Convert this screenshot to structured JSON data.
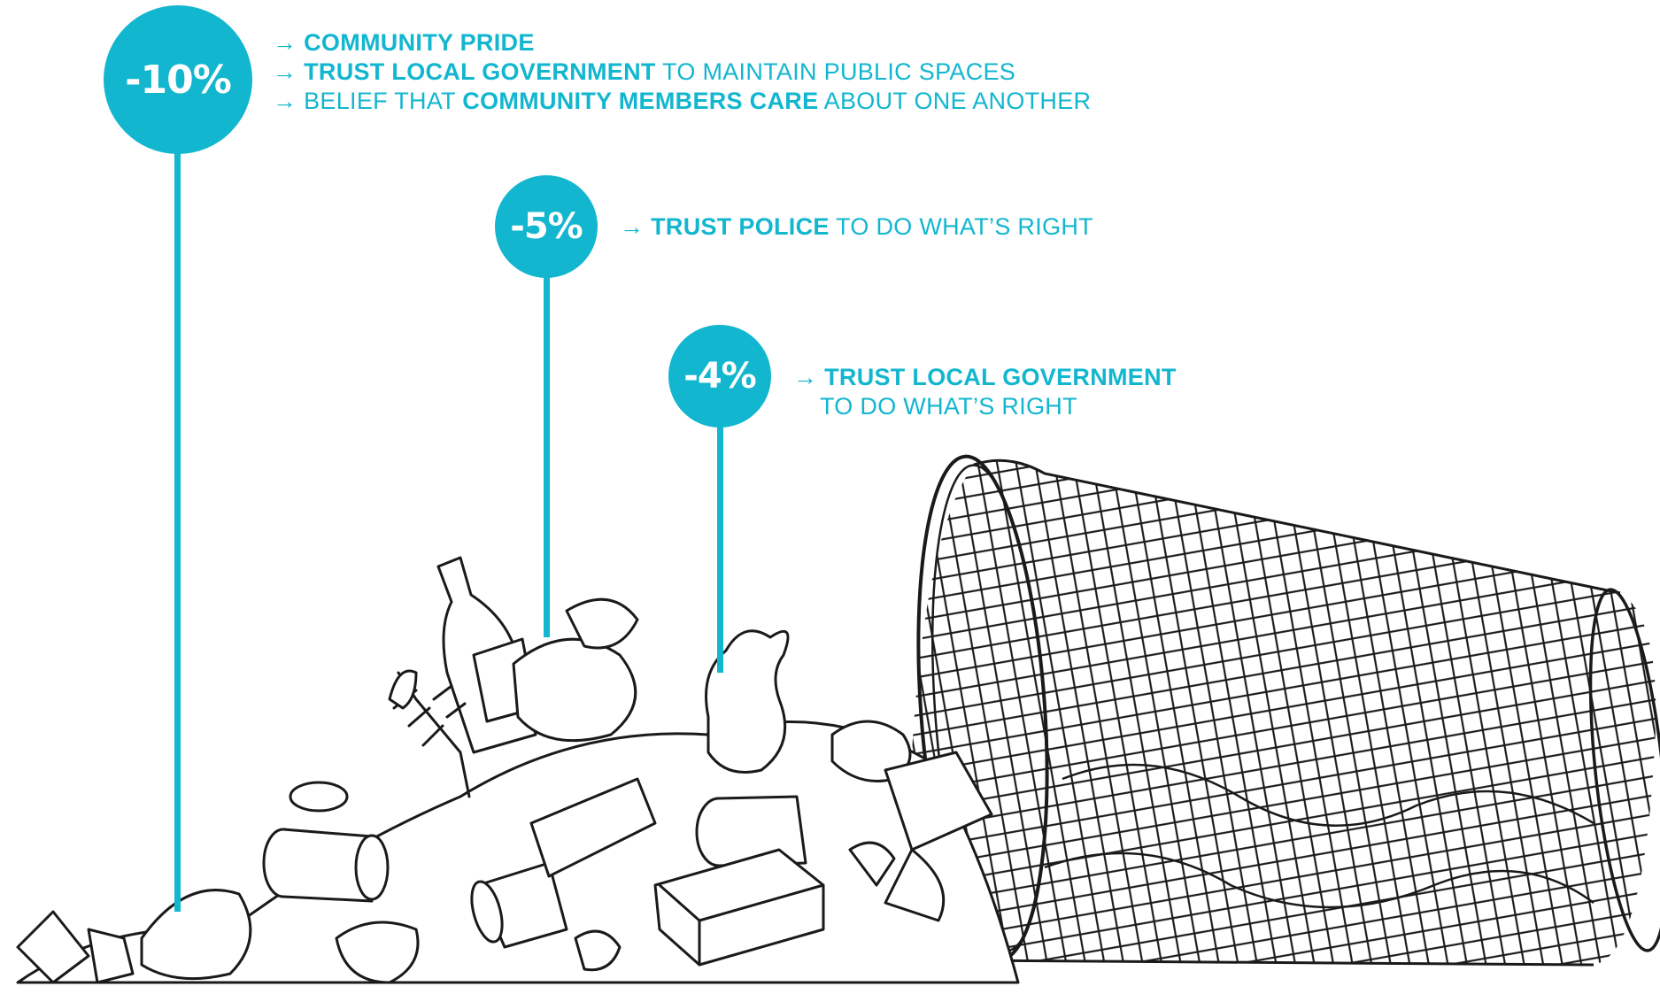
{
  "colors": {
    "accent": "#12b6cf",
    "ink": "#1a1a1a",
    "background": "#ffffff"
  },
  "stats": [
    {
      "value": "-10%",
      "lines": [
        [
          {
            "t": "→ ",
            "b": false
          },
          {
            "t": "COMMUNITY PRIDE",
            "b": true
          }
        ],
        [
          {
            "t": "→ ",
            "b": false
          },
          {
            "t": "TRUST LOCAL GOVERNMENT",
            "b": true
          },
          {
            "t": " TO MAINTAIN PUBLIC SPACES",
            "b": false
          }
        ],
        [
          {
            "t": "→ ",
            "b": false
          },
          {
            "t": "BELIEF THAT ",
            "b": false
          },
          {
            "t": "COMMUNITY MEMBERS CARE",
            "b": true
          },
          {
            "t": " ABOUT ONE ANOTHER",
            "b": false
          }
        ]
      ]
    },
    {
      "value": "-5%",
      "lines": [
        [
          {
            "t": "→ ",
            "b": false
          },
          {
            "t": "TRUST POLICE",
            "b": true
          },
          {
            "t": " TO DO WHAT’S RIGHT",
            "b": false
          }
        ]
      ]
    },
    {
      "value": "-4%",
      "lines": [
        [
          {
            "t": "→ ",
            "b": false
          },
          {
            "t": "TRUST LOCAL GOVERNMENT",
            "b": true
          }
        ],
        [
          {
            "t": "TO DO WHAT’S RIGHT",
            "b": false
          }
        ]
      ]
    }
  ],
  "illustration": {
    "icon": "overturned-trash-can-with-litter-illustration"
  }
}
